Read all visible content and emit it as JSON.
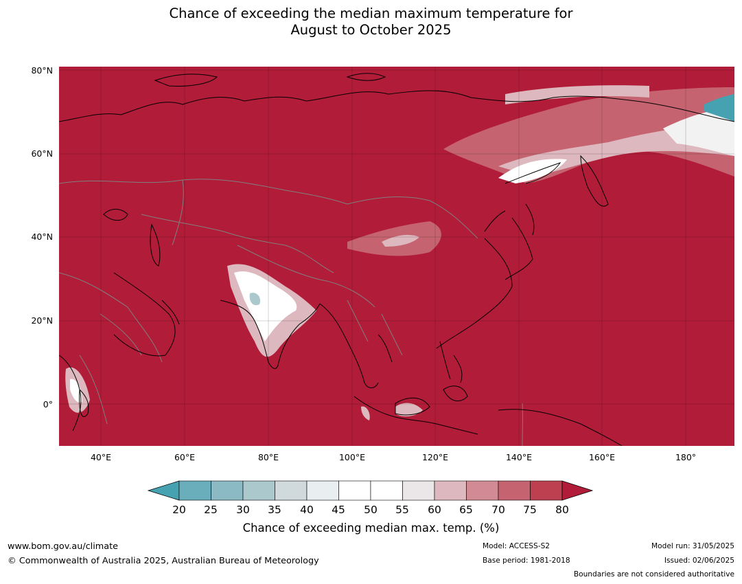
{
  "header": {
    "title_line1": "Chance of exceeding the median maximum temperature for",
    "title_line2": "August to October 2025"
  },
  "map": {
    "lat_labels": [
      "80°N",
      "60°N",
      "40°N",
      "20°N",
      "0°"
    ],
    "lon_labels": [
      "40°E",
      "60°E",
      "80°E",
      "100°E",
      "120°E",
      "140°E",
      "160°E",
      "180°"
    ],
    "background_color": "#b11c38",
    "coastline_color": "#000000",
    "border_color": "#808080"
  },
  "colorbar": {
    "title": "Chance of exceeding median max. temp. (%)",
    "ticks": [
      "20",
      "25",
      "30",
      "35",
      "40",
      "45",
      "50",
      "55",
      "60",
      "65",
      "70",
      "75",
      "80"
    ],
    "colors": [
      "#46a1b1",
      "#6aaebb",
      "#8bbac4",
      "#abc8cc",
      "#d0dadd",
      "#e9eef0",
      "#ffffff",
      "#ffffff",
      "#ebe6e8",
      "#ddb8be",
      "#d28b95",
      "#c56470",
      "#bc4050",
      "#b11c38"
    ]
  },
  "footer": {
    "website": "www.bom.gov.au/climate",
    "copyright": "© Commonwealth of Australia 2025, Australian Bureau of Meteorology",
    "model": "Model: ACCESS-S2",
    "base_period": "Base period: 1981-2018",
    "model_run": "Model run: 31/05/2025",
    "issued": "Issued: 02/06/2025",
    "disclaimer": "Boundaries are not considered authoritative"
  }
}
